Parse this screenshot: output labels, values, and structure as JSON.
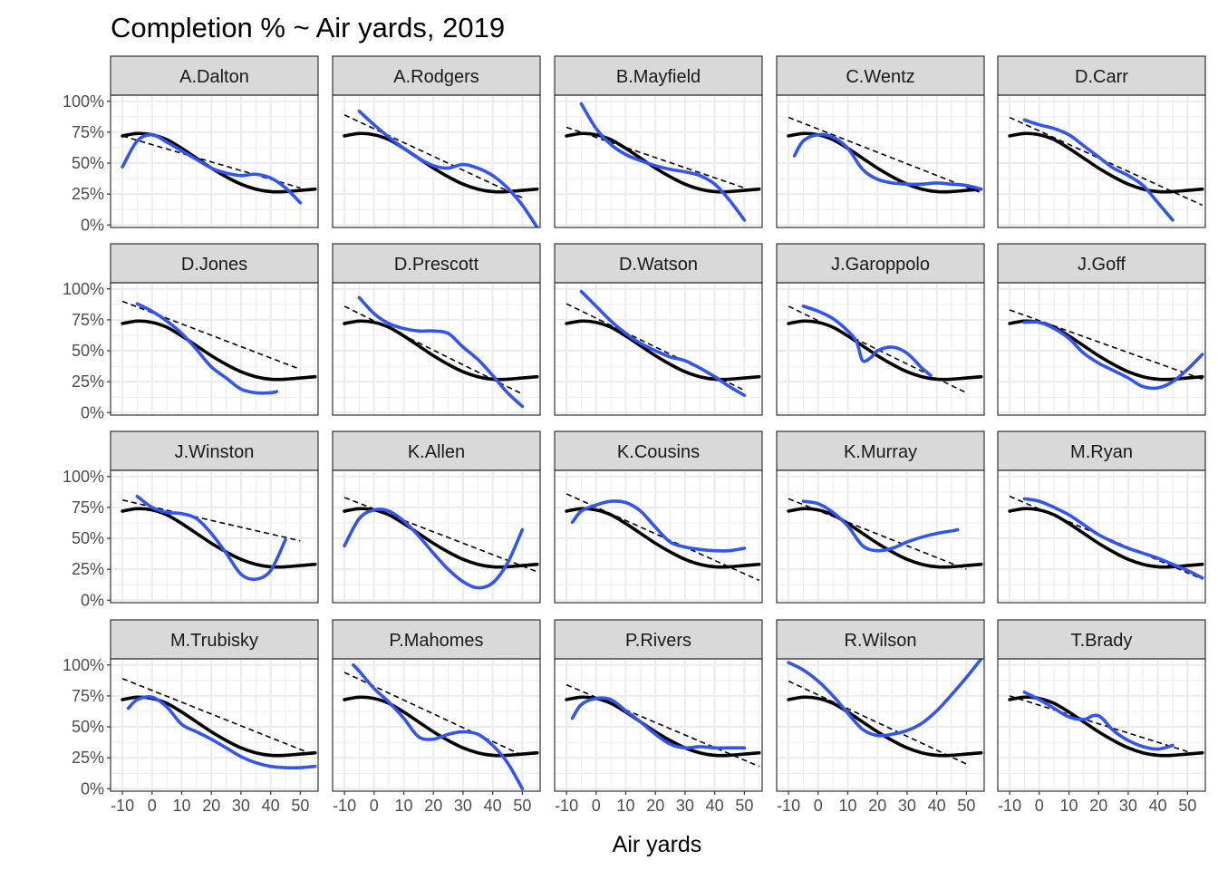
{
  "chart_data": {
    "type": "line",
    "title": "Completion % ~ Air yards, 2019",
    "xlabel": "Air yards",
    "ylabel": "",
    "xlim": [
      -14,
      56
    ],
    "ylim": [
      -2,
      105
    ],
    "x_ticks": [
      -10,
      0,
      10,
      20,
      30,
      40,
      50
    ],
    "x_tick_labels": [
      "-10",
      "0",
      "10",
      "20",
      "30",
      "40",
      "50"
    ],
    "y_ticks": [
      0,
      25,
      50,
      75,
      100
    ],
    "y_tick_labels": [
      "0%",
      "25%",
      "50%",
      "75%",
      "100%"
    ],
    "grid": true,
    "facet_layout": {
      "rows": 4,
      "cols": 5
    },
    "colors": {
      "player_smooth": "#3355ee",
      "overall": "#000000",
      "linear": "#000000",
      "strip_fill": "#d9d9d9",
      "grid": "#ebebeb"
    },
    "overall_curve": {
      "x": [
        -10,
        -5,
        0,
        5,
        10,
        15,
        20,
        25,
        30,
        35,
        40,
        45,
        50,
        55
      ],
      "y": [
        72,
        74,
        73,
        69,
        62,
        54,
        46,
        39,
        33,
        29,
        27,
        27,
        28,
        29
      ]
    },
    "panels": [
      {
        "player": "A.Dalton",
        "linear": {
          "x": [
            -10,
            50
          ],
          "y": [
            72,
            30
          ]
        },
        "smooth": {
          "x": [
            -10,
            -5,
            0,
            5,
            10,
            15,
            20,
            25,
            30,
            35,
            40,
            45,
            50
          ],
          "y": [
            47,
            68,
            73,
            67,
            60,
            53,
            46,
            42,
            40,
            41,
            38,
            30,
            18
          ]
        }
      },
      {
        "player": "A.Rodgers",
        "linear": {
          "x": [
            -10,
            50
          ],
          "y": [
            89,
            22
          ]
        },
        "smooth": {
          "x": [
            -5,
            0,
            5,
            10,
            15,
            20,
            25,
            30,
            35,
            40,
            45,
            50,
            55
          ],
          "y": [
            92,
            81,
            71,
            62,
            54,
            48,
            46,
            49,
            46,
            40,
            30,
            16,
            -2
          ]
        }
      },
      {
        "player": "B.Mayfield",
        "linear": {
          "x": [
            -10,
            50
          ],
          "y": [
            79,
            30
          ]
        },
        "smooth": {
          "x": [
            -5,
            0,
            5,
            10,
            15,
            20,
            25,
            30,
            35,
            40,
            45,
            50
          ],
          "y": [
            98,
            78,
            65,
            57,
            52,
            48,
            45,
            43,
            40,
            33,
            20,
            4
          ]
        }
      },
      {
        "player": "C.Wentz",
        "linear": {
          "x": [
            -10,
            55
          ],
          "y": [
            87,
            26
          ]
        },
        "smooth": {
          "x": [
            -8,
            -5,
            0,
            5,
            10,
            15,
            20,
            25,
            30,
            35,
            40,
            45,
            50,
            55
          ],
          "y": [
            56,
            68,
            73,
            71,
            62,
            45,
            37,
            34,
            33,
            33,
            34,
            33,
            32,
            29
          ]
        }
      },
      {
        "player": "D.Carr",
        "linear": {
          "x": [
            -10,
            55
          ],
          "y": [
            87,
            16
          ]
        },
        "smooth": {
          "x": [
            -5,
            0,
            5,
            10,
            15,
            20,
            25,
            30,
            35,
            40,
            45
          ],
          "y": [
            85,
            81,
            78,
            73,
            64,
            55,
            46,
            40,
            32,
            18,
            4
          ]
        }
      },
      {
        "player": "D.Jones",
        "linear": {
          "x": [
            -10,
            50
          ],
          "y": [
            90,
            35
          ]
        },
        "smooth": {
          "x": [
            -5,
            0,
            5,
            10,
            15,
            20,
            25,
            30,
            35,
            40,
            42
          ],
          "y": [
            88,
            82,
            74,
            64,
            51,
            37,
            28,
            19,
            16,
            16,
            17
          ]
        }
      },
      {
        "player": "D.Prescott",
        "linear": {
          "x": [
            -10,
            50
          ],
          "y": [
            86,
            15
          ]
        },
        "smooth": {
          "x": [
            -5,
            0,
            5,
            10,
            15,
            20,
            25,
            30,
            35,
            40,
            45,
            50
          ],
          "y": [
            93,
            80,
            72,
            68,
            66,
            66,
            64,
            53,
            43,
            30,
            16,
            5
          ]
        }
      },
      {
        "player": "D.Watson",
        "linear": {
          "x": [
            -10,
            50
          ],
          "y": [
            88,
            18
          ]
        },
        "smooth": {
          "x": [
            -5,
            0,
            5,
            10,
            15,
            20,
            25,
            30,
            35,
            40,
            45,
            50
          ],
          "y": [
            98,
            86,
            74,
            64,
            56,
            50,
            45,
            42,
            36,
            29,
            21,
            14
          ]
        }
      },
      {
        "player": "J.Garoppolo",
        "linear": {
          "x": [
            -10,
            50
          ],
          "y": [
            86,
            16
          ]
        },
        "smooth": {
          "x": [
            -5,
            0,
            5,
            10,
            13,
            15,
            18,
            20,
            25,
            30,
            35,
            38
          ],
          "y": [
            86,
            82,
            76,
            66,
            57,
            42,
            45,
            50,
            53,
            48,
            36,
            30
          ]
        }
      },
      {
        "player": "J.Goff",
        "linear": {
          "x": [
            -10,
            55
          ],
          "y": [
            83,
            27
          ]
        },
        "smooth": {
          "x": [
            -5,
            0,
            5,
            10,
            15,
            20,
            25,
            30,
            35,
            40,
            45,
            50,
            55
          ],
          "y": [
            73,
            73,
            68,
            60,
            48,
            40,
            34,
            28,
            21,
            20,
            25,
            35,
            47
          ]
        }
      },
      {
        "player": "J.Winston",
        "linear": {
          "x": [
            -10,
            50
          ],
          "y": [
            81,
            48
          ]
        },
        "smooth": {
          "x": [
            -5,
            0,
            5,
            10,
            15,
            20,
            25,
            30,
            35,
            40,
            45
          ],
          "y": [
            84,
            75,
            71,
            70,
            66,
            54,
            38,
            21,
            17,
            24,
            49
          ]
        }
      },
      {
        "player": "K.Allen",
        "linear": {
          "x": [
            -10,
            55
          ],
          "y": [
            83,
            23
          ]
        },
        "smooth": {
          "x": [
            -10,
            -5,
            0,
            5,
            10,
            15,
            20,
            25,
            30,
            35,
            40,
            45,
            50
          ],
          "y": [
            44,
            66,
            73,
            72,
            64,
            52,
            38,
            25,
            15,
            10,
            14,
            30,
            57
          ]
        }
      },
      {
        "player": "K.Cousins",
        "linear": {
          "x": [
            -10,
            55
          ],
          "y": [
            86,
            16
          ]
        },
        "smooth": {
          "x": [
            -8,
            -5,
            0,
            5,
            10,
            15,
            20,
            25,
            30,
            35,
            40,
            45,
            50
          ],
          "y": [
            63,
            72,
            77,
            80,
            79,
            72,
            59,
            47,
            43,
            41,
            40,
            40,
            42
          ]
        }
      },
      {
        "player": "K.Murray",
        "linear": {
          "x": [
            -10,
            50
          ],
          "y": [
            82,
            25
          ]
        },
        "smooth": {
          "x": [
            -5,
            0,
            5,
            10,
            15,
            20,
            25,
            30,
            35,
            40,
            45,
            47
          ],
          "y": [
            80,
            78,
            71,
            60,
            44,
            40,
            42,
            47,
            51,
            54,
            56,
            57
          ]
        }
      },
      {
        "player": "M.Ryan",
        "linear": {
          "x": [
            -10,
            55
          ],
          "y": [
            84,
            17
          ]
        },
        "smooth": {
          "x": [
            -5,
            0,
            5,
            10,
            15,
            20,
            25,
            30,
            35,
            40,
            45,
            50,
            55
          ],
          "y": [
            82,
            80,
            75,
            69,
            61,
            53,
            47,
            42,
            38,
            34,
            29,
            24,
            18
          ]
        }
      },
      {
        "player": "M.Trubisky",
        "linear": {
          "x": [
            -10,
            55
          ],
          "y": [
            89,
            27
          ]
        },
        "smooth": {
          "x": [
            -8,
            -5,
            0,
            5,
            10,
            15,
            20,
            25,
            30,
            35,
            40,
            45,
            50,
            55
          ],
          "y": [
            65,
            72,
            74,
            66,
            52,
            46,
            40,
            33,
            26,
            21,
            18,
            17,
            17,
            18
          ]
        }
      },
      {
        "player": "P.Mahomes",
        "linear": {
          "x": [
            -10,
            50
          ],
          "y": [
            94,
            27
          ]
        },
        "smooth": {
          "x": [
            -7,
            -5,
            0,
            5,
            10,
            15,
            20,
            25,
            30,
            35,
            40,
            45,
            50
          ],
          "y": [
            100,
            95,
            81,
            70,
            57,
            42,
            40,
            44,
            46,
            44,
            35,
            21,
            0
          ]
        }
      },
      {
        "player": "P.Rivers",
        "linear": {
          "x": [
            -10,
            55
          ],
          "y": [
            84,
            18
          ]
        },
        "smooth": {
          "x": [
            -8,
            -5,
            0,
            5,
            10,
            15,
            20,
            25,
            30,
            35,
            40,
            45,
            50
          ],
          "y": [
            57,
            68,
            73,
            72,
            63,
            54,
            44,
            36,
            33,
            34,
            33,
            33,
            33
          ]
        }
      },
      {
        "player": "R.Wilson",
        "linear": {
          "x": [
            -10,
            50
          ],
          "y": [
            87,
            20
          ]
        },
        "smooth": {
          "x": [
            -10,
            -5,
            0,
            5,
            10,
            15,
            20,
            25,
            30,
            35,
            40,
            45,
            50,
            55
          ],
          "y": [
            102,
            96,
            87,
            75,
            61,
            48,
            43,
            44,
            47,
            53,
            63,
            76,
            90,
            105
          ]
        }
      },
      {
        "player": "T.Brady",
        "linear": {
          "x": [
            -10,
            50
          ],
          "y": [
            75,
            30
          ]
        },
        "smooth": {
          "x": [
            -5,
            0,
            5,
            10,
            15,
            18,
            20,
            22,
            25,
            30,
            35,
            40,
            45
          ],
          "y": [
            78,
            72,
            65,
            58,
            56,
            59,
            59,
            55,
            47,
            39,
            34,
            32,
            35
          ]
        }
      }
    ]
  }
}
